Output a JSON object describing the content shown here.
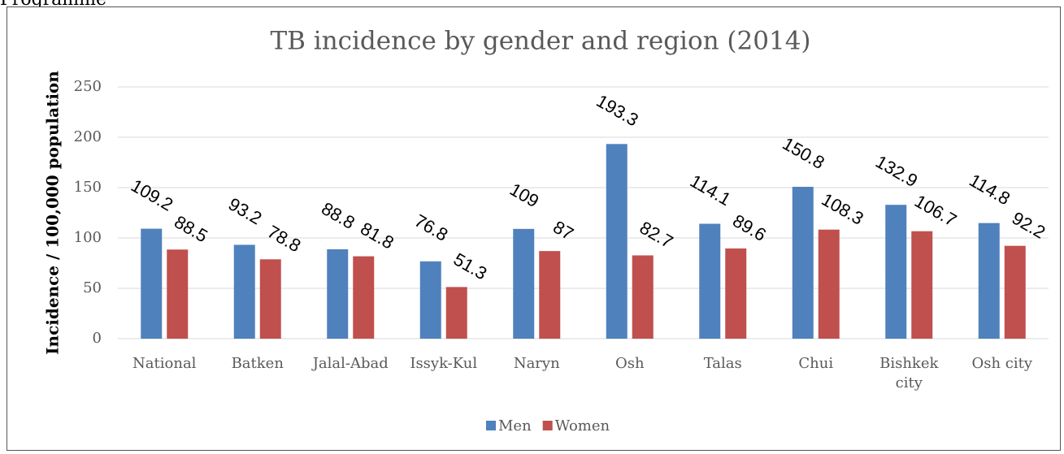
{
  "page_text": "Programme",
  "chart_data": {
    "type": "bar",
    "title": "TB incidence by gender and region (2014)",
    "y_label": "Incidence / 100,000 population",
    "categories": [
      "National",
      "Batken",
      "Jalal-Abad",
      "Issyk-Kul",
      "Naryn",
      "Osh",
      "Talas",
      "Chui",
      "Bishkek city",
      "Osh city"
    ],
    "series": [
      {
        "name": "Men",
        "color": "#4f81bd",
        "values": [
          109.2,
          93.2,
          88.8,
          76.8,
          109,
          193.3,
          114.1,
          150.8,
          132.9,
          114.8
        ]
      },
      {
        "name": "Women",
        "color": "#c0504d",
        "values": [
          88.5,
          78.8,
          81.8,
          51.3,
          87,
          82.7,
          89.6,
          108.3,
          106.7,
          92.2
        ]
      }
    ],
    "ylim": [
      0,
      250
    ],
    "yticks": [
      0,
      50,
      100,
      150,
      200,
      250
    ],
    "grid": true,
    "legend": "bottom"
  }
}
